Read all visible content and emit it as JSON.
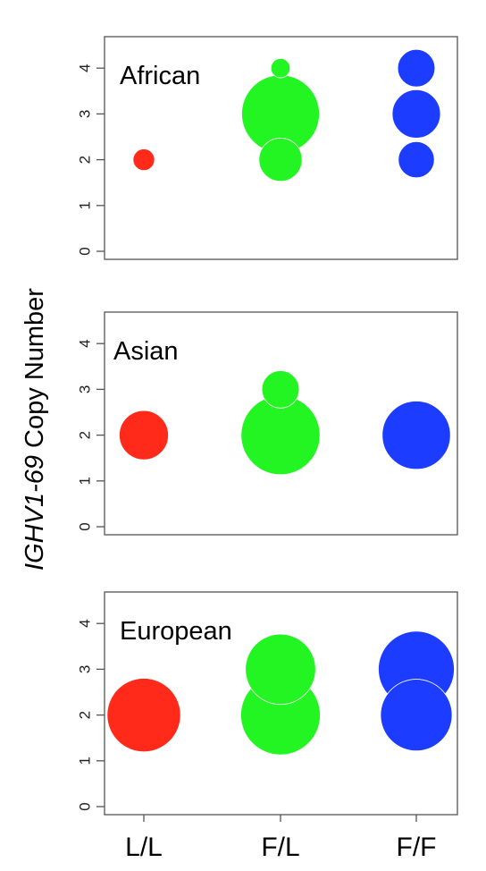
{
  "chart_data": {
    "type": "scatter",
    "ylabel": {
      "italic_part": "IGHV1-69",
      "regular_part": " Copy Number"
    },
    "categories": [
      "L/L",
      "F/L",
      "F/F"
    ],
    "category_colors": [
      "#ff2a1a",
      "#22f522",
      "#1c3cff"
    ],
    "ylim": [
      0,
      4
    ],
    "yticks": [
      0,
      1,
      2,
      3,
      4
    ],
    "panels": [
      {
        "title": "African",
        "points": [
          {
            "category": "L/L",
            "y": 2,
            "relative_size": 0.05
          },
          {
            "category": "F/L",
            "y": 4,
            "relative_size": 0.04
          },
          {
            "category": "F/L",
            "y": 3,
            "relative_size": 0.65
          },
          {
            "category": "F/L",
            "y": 2,
            "relative_size": 0.2
          },
          {
            "category": "F/F",
            "y": 4,
            "relative_size": 0.15
          },
          {
            "category": "F/F",
            "y": 3,
            "relative_size": 0.25
          },
          {
            "category": "F/F",
            "y": 2,
            "relative_size": 0.14
          }
        ]
      },
      {
        "title": "Asian",
        "points": [
          {
            "category": "L/L",
            "y": 2,
            "relative_size": 0.26
          },
          {
            "category": "F/L",
            "y": 3,
            "relative_size": 0.15
          },
          {
            "category": "F/L",
            "y": 2,
            "relative_size": 0.67
          },
          {
            "category": "F/F",
            "y": 2,
            "relative_size": 0.5
          }
        ]
      },
      {
        "title": "European",
        "points": [
          {
            "category": "L/L",
            "y": 2,
            "relative_size": 0.58
          },
          {
            "category": "F/L",
            "y": 3,
            "relative_size": 0.53
          },
          {
            "category": "F/L",
            "y": 2,
            "relative_size": 0.68
          },
          {
            "category": "F/F",
            "y": 3,
            "relative_size": 0.62
          },
          {
            "category": "F/F",
            "y": 2,
            "relative_size": 0.55
          }
        ]
      }
    ]
  }
}
